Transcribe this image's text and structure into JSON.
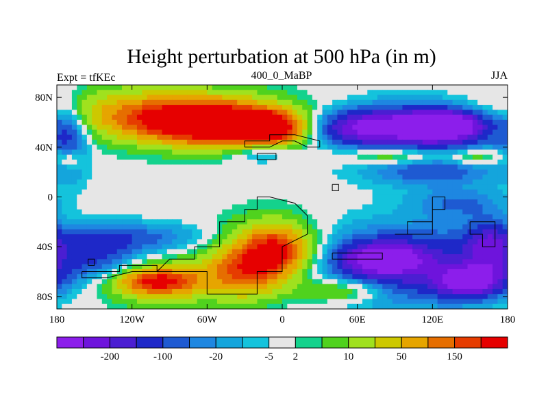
{
  "chart_data": {
    "type": "heatmap",
    "title": "Height perturbation at 500 hPa (in m)",
    "left_label": "Expt = tfKEc",
    "center_label": "400_0_MaBP",
    "right_label": "JJA",
    "xlim": [
      -180,
      180
    ],
    "ylim": [
      -90,
      90
    ],
    "x_ticks": [
      {
        "value": -180,
        "label": "180"
      },
      {
        "value": -120,
        "label": "120W"
      },
      {
        "value": -60,
        "label": "60W"
      },
      {
        "value": 0,
        "label": "0"
      },
      {
        "value": 60,
        "label": "60E"
      },
      {
        "value": 120,
        "label": "120E"
      },
      {
        "value": 180,
        "label": "180"
      }
    ],
    "y_ticks": [
      {
        "value": 80,
        "label": "80N"
      },
      {
        "value": 40,
        "label": "40N"
      },
      {
        "value": 0,
        "label": "0"
      },
      {
        "value": -40,
        "label": "40S"
      },
      {
        "value": -80,
        "label": "80S"
      }
    ],
    "colorbar": {
      "colors": [
        "#8c1eeb",
        "#6e14dc",
        "#4b1ed2",
        "#1e28c8",
        "#1e5ad2",
        "#1e87e1",
        "#14a5dc",
        "#14c3dc",
        "#e6e6e6",
        "#14d28c",
        "#50d21e",
        "#a0e11e",
        "#cdc800",
        "#e6a500",
        "#e66e00",
        "#e63c00",
        "#e60000"
      ],
      "tick_labels": [
        {
          "after_index": 1,
          "label": "-200"
        },
        {
          "after_index": 3,
          "label": "-100"
        },
        {
          "after_index": 5,
          "label": "-20"
        },
        {
          "after_index": 7,
          "label": "-5"
        },
        {
          "after_index": 8,
          "label": "2"
        },
        {
          "after_index": 10,
          "label": "10"
        },
        {
          "after_index": 12,
          "label": "50"
        },
        {
          "after_index": 14,
          "label": "150"
        }
      ]
    },
    "field_blobs": [
      {
        "lon": -115,
        "lat": 72,
        "rlon": 65,
        "rlat": 15,
        "value": 1.0
      },
      {
        "lon": -100,
        "lat": 65,
        "rlon": 90,
        "rlat": 25,
        "value": 2.0
      },
      {
        "lon": -70,
        "lat": 60,
        "rlon": 60,
        "rlat": 14,
        "value": 3.5
      },
      {
        "lon": -45,
        "lat": 58,
        "rlon": 50,
        "rlat": 18,
        "value": 4.0
      },
      {
        "lon": -10,
        "lat": 55,
        "rlon": 25,
        "rlat": 12,
        "value": 5.0
      },
      {
        "lon": -20,
        "lat": 35,
        "rlon": 25,
        "rlat": 8,
        "value": -1.2
      },
      {
        "lon": 60,
        "lat": 56,
        "rlon": 35,
        "rlat": 14,
        "value": -3.5
      },
      {
        "lon": 120,
        "lat": 56,
        "rlon": 50,
        "rlat": 16,
        "value": -3.5
      },
      {
        "lon": 125,
        "lat": 58,
        "rlon": 30,
        "rlat": 9,
        "value": -5.0
      },
      {
        "lon": 120,
        "lat": 45,
        "rlon": 70,
        "rlat": 32,
        "value": -1.3
      },
      {
        "lon": -170,
        "lat": 50,
        "rlon": 15,
        "rlat": 30,
        "value": -2.0
      },
      {
        "lon": 90,
        "lat": 33,
        "rlon": 40,
        "rlat": 7,
        "value": 2.0
      },
      {
        "lon": 155,
        "lat": 32,
        "rlon": 25,
        "rlat": 7,
        "value": 1.6
      },
      {
        "lon": 120,
        "lat": 20,
        "rlon": 45,
        "rlat": 10,
        "value": -1.3
      },
      {
        "lon": -170,
        "lat": 30,
        "rlon": 10,
        "rlat": 8,
        "value": 1.3
      },
      {
        "lon": -120,
        "lat": -33,
        "rlon": 65,
        "rlat": 12,
        "value": -1.5
      },
      {
        "lon": -150,
        "lat": -50,
        "rlon": 40,
        "rlat": 20,
        "value": -2.0
      },
      {
        "lon": -10,
        "lat": -45,
        "rlon": 40,
        "rlat": 28,
        "value": 2.5
      },
      {
        "lon": -5,
        "lat": -42,
        "rlon": 25,
        "rlat": 18,
        "value": 3.2
      },
      {
        "lon": -95,
        "lat": -68,
        "rlon": 55,
        "rlat": 20,
        "value": 2.0
      },
      {
        "lon": -100,
        "lat": -68,
        "rlon": 30,
        "rlat": 10,
        "value": 4.0
      },
      {
        "lon": -30,
        "lat": -60,
        "rlon": 30,
        "rlat": 20,
        "value": 3.0
      },
      {
        "lon": 100,
        "lat": -55,
        "rlon": 75,
        "rlat": 30,
        "value": -3.2
      },
      {
        "lon": 150,
        "lat": -68,
        "rlon": 25,
        "rlat": 12,
        "value": -4.5
      },
      {
        "lon": 80,
        "lat": -50,
        "rlon": 30,
        "rlat": 12,
        "value": -3.8
      },
      {
        "lon": 165,
        "lat": -40,
        "rlon": 18,
        "rlat": 22,
        "value": -2.5
      },
      {
        "lon": 50,
        "lat": -75,
        "rlon": 35,
        "rlat": 10,
        "value": 2.0
      },
      {
        "lon": 140,
        "lat": -5,
        "rlon": 35,
        "rlat": 12,
        "value": -1.3
      },
      {
        "lon": -40,
        "lat": 5,
        "rlon": 60,
        "rlat": 5,
        "value": 0.0
      }
    ],
    "continent_outlines": [
      [
        [
          -160,
          -60
        ],
        [
          -130,
          -60
        ],
        [
          -130,
          -55
        ],
        [
          -100,
          -55
        ],
        [
          -100,
          -60
        ],
        [
          -60,
          -60
        ],
        [
          -60,
          -78
        ],
        [
          -20,
          -78
        ],
        [
          -20,
          -60
        ],
        [
          0,
          -60
        ],
        [
          0,
          -40
        ],
        [
          20,
          -30
        ],
        [
          20,
          -15
        ],
        [
          10,
          -5
        ],
        [
          -10,
          0
        ],
        [
          -20,
          0
        ],
        [
          -20,
          -10
        ],
        [
          -30,
          -10
        ],
        [
          -30,
          -20
        ],
        [
          -50,
          -20
        ],
        [
          -50,
          -40
        ],
        [
          -70,
          -40
        ],
        [
          -70,
          -50
        ],
        [
          -90,
          -50
        ],
        [
          -100,
          -60
        ],
        [
          -120,
          -60
        ],
        [
          -140,
          -65
        ],
        [
          -160,
          -65
        ],
        [
          -160,
          -60
        ]
      ],
      [
        [
          -30,
          40
        ],
        [
          -10,
          40
        ],
        [
          0,
          45
        ],
        [
          10,
          45
        ],
        [
          20,
          40
        ],
        [
          30,
          40
        ],
        [
          30,
          45
        ],
        [
          10,
          50
        ],
        [
          -10,
          50
        ],
        [
          -10,
          45
        ],
        [
          -30,
          45
        ],
        [
          -30,
          40
        ]
      ],
      [
        [
          -20,
          35
        ],
        [
          -5,
          35
        ],
        [
          -5,
          30
        ],
        [
          -20,
          30
        ],
        [
          -20,
          35
        ]
      ],
      [
        [
          40,
          10
        ],
        [
          45,
          10
        ],
        [
          45,
          5
        ],
        [
          40,
          5
        ],
        [
          40,
          10
        ]
      ],
      [
        [
          90,
          -30
        ],
        [
          120,
          -30
        ],
        [
          120,
          -10
        ],
        [
          130,
          -10
        ],
        [
          130,
          0
        ],
        [
          120,
          0
        ],
        [
          120,
          -20
        ],
        [
          100,
          -20
        ],
        [
          100,
          -30
        ],
        [
          90,
          -30
        ]
      ],
      [
        [
          150,
          -20
        ],
        [
          170,
          -20
        ],
        [
          170,
          -40
        ],
        [
          160,
          -40
        ],
        [
          160,
          -30
        ],
        [
          150,
          -30
        ],
        [
          150,
          -20
        ]
      ],
      [
        [
          -155,
          -55
        ],
        [
          -150,
          -55
        ],
        [
          -150,
          -50
        ],
        [
          -155,
          -50
        ],
        [
          -155,
          -55
        ]
      ],
      [
        [
          40,
          -45
        ],
        [
          80,
          -45
        ],
        [
          80,
          -50
        ],
        [
          40,
          -50
        ],
        [
          40,
          -45
        ]
      ]
    ]
  }
}
